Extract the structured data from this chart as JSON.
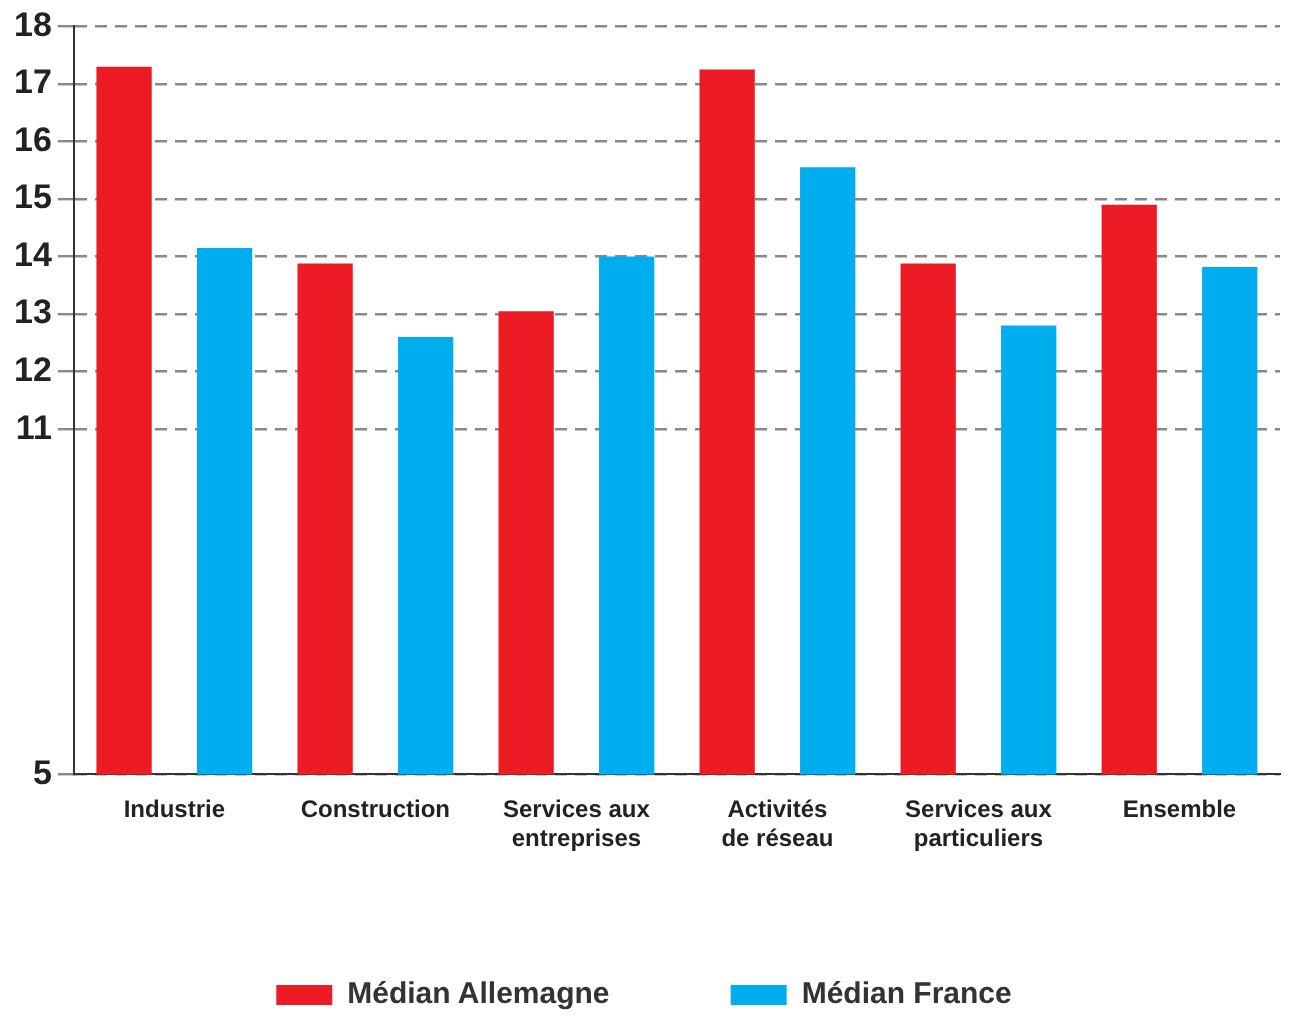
{
  "chart_data": {
    "type": "bar",
    "categories": [
      "Industrie",
      "Construction",
      "Services aux entreprises",
      "Activités de réseau",
      "Services aux particuliers",
      "Ensemble"
    ],
    "series": [
      {
        "name": "Médian Allemagne",
        "color": "#ed1c24",
        "values": [
          17.3,
          13.88,
          13.05,
          17.25,
          13.88,
          14.9
        ]
      },
      {
        "name": "Médian France",
        "color": "#00aeef",
        "values": [
          14.15,
          12.6,
          14.0,
          15.55,
          12.8,
          13.82
        ]
      }
    ],
    "ylim": [
      5,
      18
    ],
    "yticks": [
      5,
      11,
      12,
      13,
      14,
      15,
      16,
      17,
      18
    ],
    "grid": "y",
    "legend": "bottom"
  }
}
